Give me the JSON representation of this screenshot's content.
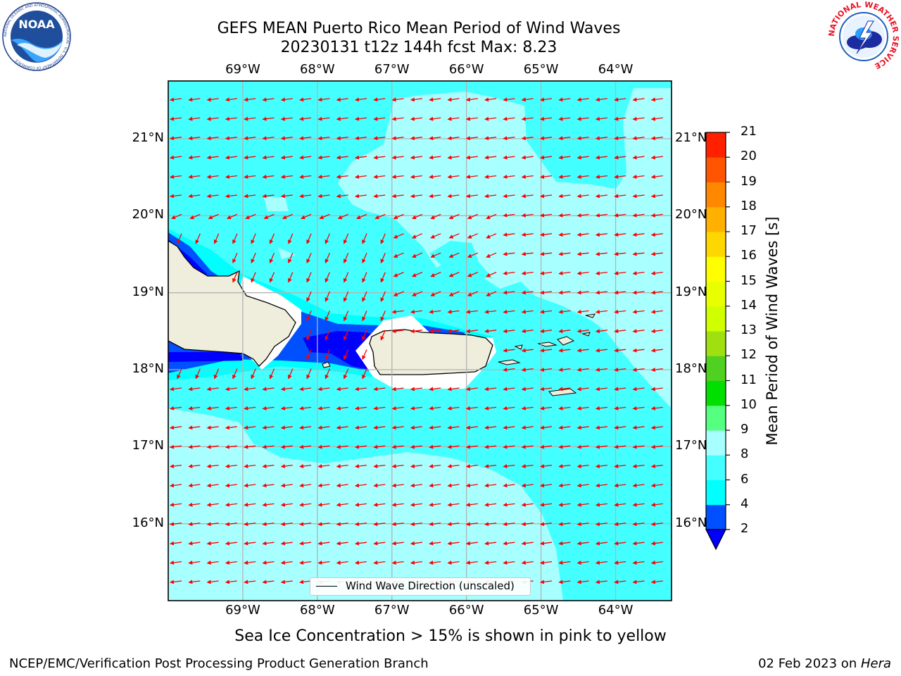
{
  "title": {
    "line1": "GEFS MEAN Puerto Rico Mean Period of Wind Waves",
    "line2": "20230131 t12z 144h fcst   Max: 8.23"
  },
  "logos": {
    "left": "noaa-logo",
    "right": "nws-logo",
    "left_text": "NOAA",
    "left_ring": "NATIONAL OCEANIC AND ATMOSPHERIC ADMINISTRATION · U.S. DEPARTMENT OF COMMERCE",
    "right_ring": "NATIONAL WEATHER SERVICE"
  },
  "map": {
    "lon_labels": [
      "69°W",
      "68°W",
      "67°W",
      "66°W",
      "65°W",
      "64°W"
    ],
    "lat_labels": [
      "21°N",
      "20°N",
      "19°N",
      "18°N",
      "17°N",
      "16°N"
    ],
    "lon_range": [
      -70.0,
      -63.25
    ],
    "lat_range": [
      15.0,
      21.75
    ],
    "grid": true,
    "land_color": "#efeddb",
    "wave_arrows_color": "#ff0000",
    "legend_label": "Wind Wave Direction (unscaled)"
  },
  "colorbar": {
    "label": "Mean Period of Wind Waves [s]",
    "ticks": [
      "2",
      "4",
      "6",
      "8",
      "9",
      "10",
      "11",
      "12",
      "13",
      "14",
      "15",
      "16",
      "17",
      "18",
      "19",
      "20",
      "21"
    ],
    "colors": [
      "#0050ff",
      "#00ffff",
      "#44ffff",
      "#a8ffff",
      "#55ff80",
      "#00e000",
      "#50d020",
      "#a0e010",
      "#d0ff00",
      "#e8ff00",
      "#ffff00",
      "#ffd700",
      "#ffb000",
      "#ff8800",
      "#ff5500",
      "#ff2000"
    ],
    "extend_color": "#0000ff"
  },
  "subtitle": "Sea Ice Concentration > 15% is shown in pink to yellow",
  "footer": {
    "left": "NCEP/EMC/Verification Post Processing Product Generation Branch",
    "right_prefix": "02 Feb 2023 on ",
    "right_machine": "Hera"
  }
}
